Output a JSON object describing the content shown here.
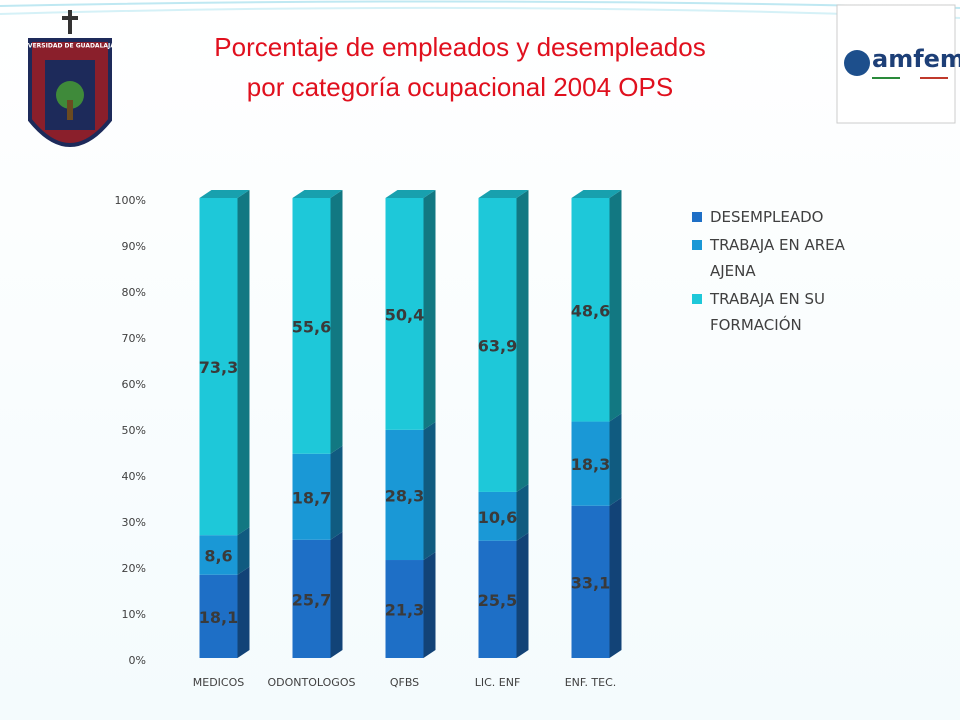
{
  "header": {
    "title_lines": [
      "Porcentaje de empleados y desempleados",
      "por categoría ocupacional 2004 OPS"
    ],
    "left_logo_text": "UNIVERSIDAD DE GUADALAJARA",
    "right_logo_text": "amfem"
  },
  "chart_data": {
    "type": "stacked_bar_3d",
    "categories": [
      "MEDICOS",
      "ODONTOLOGOS",
      "QFBS",
      "LIC. ENF",
      "ENF. TEC."
    ],
    "series": [
      {
        "name": "DESEMPLEADO",
        "color": "#1e6fc6",
        "values": [
          18.1,
          25.7,
          21.3,
          25.5,
          33.1
        ],
        "value_labels": [
          "18,1",
          "25,7",
          "21,3",
          "25,5",
          "33,1"
        ]
      },
      {
        "name": "TRABAJA EN AREA AJENA",
        "color": "#1a98d6",
        "values": [
          8.6,
          18.7,
          28.3,
          10.6,
          18.3
        ],
        "value_labels": [
          "8,6",
          "18,7",
          "28,3",
          "10,6",
          "18,3"
        ]
      },
      {
        "name": "TRABAJA EN SU FORMACIÓN",
        "color": "#1ec8d9",
        "values": [
          73.3,
          55.6,
          50.4,
          63.9,
          48.6
        ],
        "value_labels": [
          "73,3",
          "55,6",
          "50,4",
          "63,9",
          "48,6"
        ]
      }
    ],
    "ylim": [
      0,
      100
    ],
    "yticks": [
      {
        "value": 0,
        "label": "0%"
      },
      {
        "value": 10,
        "label": "10%"
      },
      {
        "value": 20,
        "label": "20%"
      },
      {
        "value": 30,
        "label": "30%"
      },
      {
        "value": 40,
        "label": "40%"
      },
      {
        "value": 50,
        "label": "50%"
      },
      {
        "value": 60,
        "label": "60%"
      },
      {
        "value": 70,
        "label": "70%"
      },
      {
        "value": 80,
        "label": "80%"
      },
      {
        "value": 90,
        "label": "90%"
      },
      {
        "value": 100,
        "label": "100%"
      }
    ],
    "grid": false,
    "legend": "right"
  }
}
